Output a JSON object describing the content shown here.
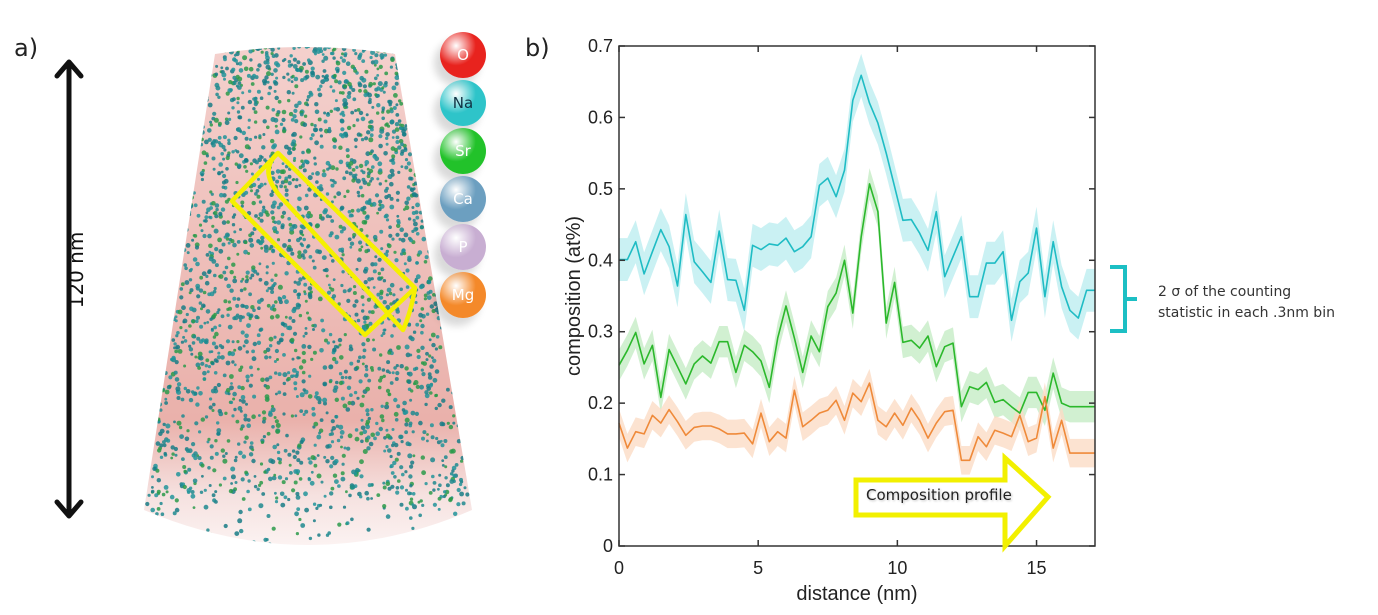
{
  "panels": {
    "a_label": "a)",
    "b_label": "b)"
  },
  "scale_bar": {
    "label": "120 nm"
  },
  "elements_legend": [
    {
      "symbol": "O",
      "color": "#e8231e",
      "text_color": "#ffffff"
    },
    {
      "symbol": "Na",
      "color": "#2ec4c9",
      "text_color": "#113344"
    },
    {
      "symbol": "Sr",
      "color": "#22c22a",
      "text_color": "#ffffff"
    },
    {
      "symbol": "Ca",
      "color": "#6c9fc0",
      "text_color": "#ffffff"
    },
    {
      "symbol": "P",
      "color": "#c8aed2",
      "text_color": "#ffffff"
    },
    {
      "symbol": "Mg",
      "color": "#f4892a",
      "text_color": "#ffffff"
    }
  ],
  "annotation": {
    "line1": "2 σ of the counting",
    "line2": "statistic in each .3nm bin",
    "bracket_color": "#1cbfc4"
  },
  "arrow_label": "Composition profile",
  "chart_data": {
    "type": "line",
    "title": "",
    "xlabel": "distance (nm)",
    "ylabel": "composition (at%)",
    "xlim": [
      0,
      17.1
    ],
    "ylim": [
      0,
      0.7
    ],
    "xticks": [
      0,
      5,
      10,
      15
    ],
    "xtick_labels": [
      "0",
      "5",
      "10",
      "15"
    ],
    "yticks": [
      0,
      0.1,
      0.2,
      0.3,
      0.4,
      0.5,
      0.6,
      0.7
    ],
    "ytick_labels": [
      "0",
      "0.1",
      "0.2",
      "0.3",
      "0.4",
      "0.5",
      "0.6",
      "0.7"
    ],
    "grid": false,
    "band_description": "shaded band = 2 sigma counting statistic per 0.3 nm bin",
    "x": [
      0,
      0.3,
      0.6,
      0.9,
      1.2,
      1.5,
      1.8,
      2.1,
      2.4,
      2.7,
      3.0,
      3.3,
      3.6,
      3.9,
      4.2,
      4.5,
      4.8,
      5.1,
      5.4,
      5.7,
      6.0,
      6.3,
      6.6,
      6.9,
      7.2,
      7.5,
      7.8,
      8.1,
      8.4,
      8.7,
      9.0,
      9.3,
      9.6,
      9.9,
      10.2,
      10.5,
      10.8,
      11.1,
      11.4,
      11.7,
      12.0,
      12.3,
      12.6,
      12.9,
      13.2,
      13.5,
      13.8,
      14.1,
      14.4,
      14.7,
      15.0,
      15.3,
      15.6,
      15.9,
      16.2,
      16.5,
      16.8,
      17.1
    ],
    "series": [
      {
        "name": "Na",
        "color": "#1fbcc4",
        "band_color": "#bdeef0",
        "values": [
          0.401,
          0.401,
          0.426,
          0.381,
          0.412,
          0.443,
          0.419,
          0.364,
          0.464,
          0.398,
          0.384,
          0.369,
          0.441,
          0.373,
          0.372,
          0.33,
          0.421,
          0.415,
          0.423,
          0.421,
          0.431,
          0.412,
          0.419,
          0.433,
          0.505,
          0.515,
          0.489,
          0.526,
          0.624,
          0.659,
          0.62,
          0.592,
          0.55,
          0.503,
          0.456,
          0.457,
          0.438,
          0.414,
          0.468,
          0.377,
          0.405,
          0.433,
          0.349,
          0.349,
          0.396,
          0.396,
          0.412,
          0.316,
          0.37,
          0.382,
          0.445,
          0.349,
          0.426,
          0.363,
          0.33,
          0.319,
          0.358,
          0.358
        ],
        "band_halfwidth": 0.03
      },
      {
        "name": "Sr",
        "color": "#2cb82c",
        "band_color": "#c6ecc6",
        "values": [
          0.253,
          0.274,
          0.299,
          0.255,
          0.281,
          0.208,
          0.275,
          0.251,
          0.227,
          0.255,
          0.266,
          0.256,
          0.286,
          0.286,
          0.243,
          0.281,
          0.272,
          0.259,
          0.222,
          0.291,
          0.336,
          0.291,
          0.243,
          0.294,
          0.272,
          0.335,
          0.354,
          0.4,
          0.326,
          0.433,
          0.507,
          0.468,
          0.312,
          0.369,
          0.285,
          0.288,
          0.277,
          0.294,
          0.251,
          0.279,
          0.284,
          0.195,
          0.223,
          0.219,
          0.229,
          0.201,
          0.205,
          0.195,
          0.186,
          0.215,
          0.215,
          0.19,
          0.242,
          0.2,
          0.195,
          0.195,
          0.195,
          0.195
        ],
        "band_halfwidth": 0.022
      },
      {
        "name": "Mg",
        "color": "#ef8a3a",
        "band_color": "#fbdcc6",
        "values": [
          0.172,
          0.137,
          0.16,
          0.157,
          0.183,
          0.172,
          0.191,
          0.174,
          0.155,
          0.166,
          0.168,
          0.168,
          0.164,
          0.157,
          0.157,
          0.158,
          0.143,
          0.186,
          0.146,
          0.16,
          0.151,
          0.218,
          0.167,
          0.176,
          0.186,
          0.19,
          0.204,
          0.176,
          0.214,
          0.202,
          0.228,
          0.176,
          0.167,
          0.186,
          0.169,
          0.193,
          0.176,
          0.151,
          0.172,
          0.188,
          0.19,
          0.12,
          0.12,
          0.153,
          0.139,
          0.162,
          0.158,
          0.153,
          0.183,
          0.146,
          0.151,
          0.209,
          0.137,
          0.176,
          0.13,
          0.13,
          0.13,
          0.13
        ],
        "band_halfwidth": 0.02
      }
    ]
  }
}
